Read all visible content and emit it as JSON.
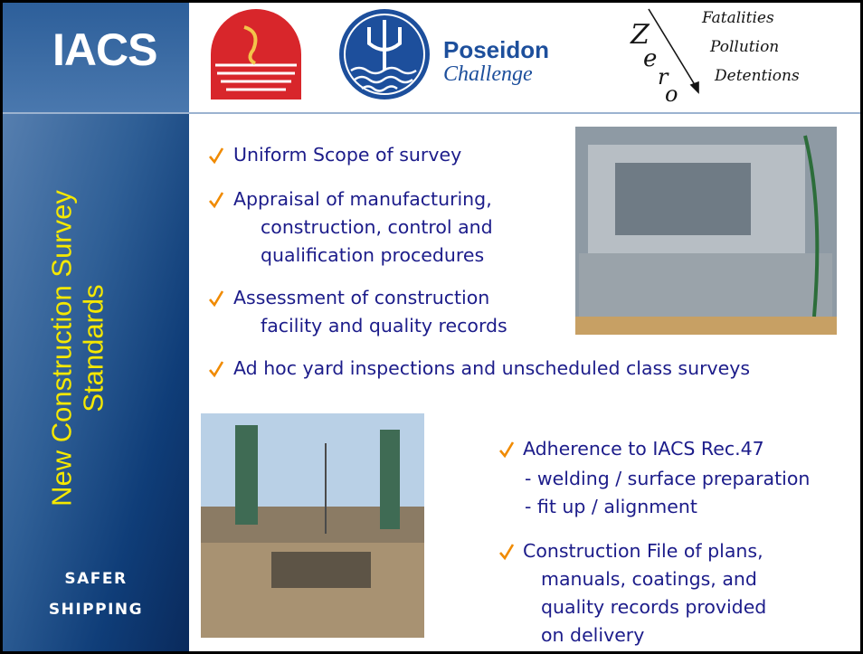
{
  "header": {
    "brand": "IACS",
    "logo_title": "Poseidon",
    "logo_subtitle": "Challenge",
    "zero_letters": [
      "Z",
      "e",
      "r",
      "o"
    ],
    "zero_targets": [
      "Fatalities",
      "Pollution",
      "Detentions"
    ]
  },
  "sidebar": {
    "title_lines": [
      "New Construction Survey",
      "Standards"
    ],
    "motto_lines": [
      "SAFER",
      "SHIPPING"
    ]
  },
  "bullets": [
    {
      "lines": [
        "Uniform Scope of survey"
      ]
    },
    {
      "lines": [
        "Appraisal of manufacturing,",
        "construction, control and",
        "qualification procedures"
      ]
    },
    {
      "lines": [
        "Assessment of construction",
        "facility and quality records"
      ]
    },
    {
      "lines": [
        "Ad hoc yard inspections and unscheduled class surveys"
      ]
    },
    {
      "lines": [
        "Adherence to IACS Rec.47",
        "- welding / surface preparation",
        "- fit up / alignment"
      ]
    },
    {
      "lines": [
        "Construction File of plans,",
        "manuals, coatings, and",
        "quality records provided",
        "on delivery"
      ]
    }
  ]
}
